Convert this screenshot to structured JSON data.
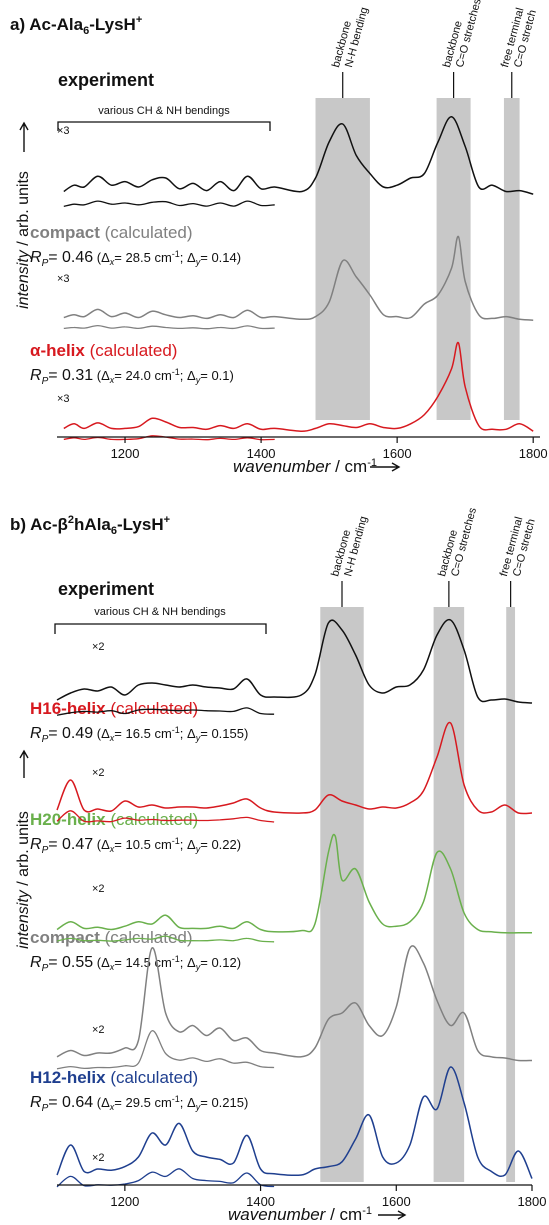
{
  "colors": {
    "black": "#111111",
    "gray": "#808080",
    "red": "#d7191f",
    "green": "#6ab04c",
    "blue": "#1f3f8f",
    "band": "#c8c8c8"
  },
  "chart_data": [
    {
      "type": "line",
      "panel_label": "a)",
      "title_main": "Ac-Ala",
      "title_sub": "6",
      "title_end": "-LysH",
      "title_sup": "+",
      "xlabel": "wavenumber",
      "xunit_main": " / cm",
      "xunit_sup": "-1",
      "ylabel": "intensity",
      "yunit": " / arb. units",
      "xlim": [
        1100,
        1810
      ],
      "xticks": [
        1200,
        1400,
        1600,
        1800
      ],
      "shaded_bands": [
        {
          "label_line1": "backbone",
          "label_line2": "N-H bending",
          "x": [
            1480,
            1560
          ]
        },
        {
          "label_line1": "backbone",
          "label_line2": "C=O stretches",
          "x": [
            1658,
            1708
          ]
        },
        {
          "label_line1": "free terminal",
          "label_line2": "C=O stretch",
          "x": [
            1757,
            1780
          ]
        }
      ],
      "bracket_label": "various CH & NH bendings",
      "series": [
        {
          "name": "experiment",
          "rp": "",
          "dx": "",
          "dy": "",
          "scale_label": "×3",
          "color_key": "black",
          "x": [
            1110,
            1125,
            1140,
            1160,
            1180,
            1200,
            1220,
            1240,
            1260,
            1280,
            1300,
            1320,
            1340,
            1360,
            1380,
            1400,
            1420,
            1460,
            1480,
            1500,
            1520,
            1540,
            1560,
            1580,
            1600,
            1620,
            1640,
            1660,
            1680,
            1700,
            1720,
            1740,
            1760,
            1780,
            1800
          ],
          "y": [
            0.05,
            0.12,
            0.1,
            0.22,
            0.12,
            0.16,
            0.1,
            0.18,
            0.2,
            0.08,
            0.14,
            0.06,
            0.16,
            0.06,
            0.22,
            0.08,
            0.1,
            0.05,
            0.2,
            0.6,
            0.8,
            0.45,
            0.25,
            0.1,
            0.12,
            0.2,
            0.25,
            0.6,
            0.88,
            0.55,
            0.1,
            0.12,
            0.05,
            0.06,
            0.02
          ]
        },
        {
          "name": "compact",
          "rp": "0.46",
          "dx": "28.5",
          "dy": "0.14",
          "scale_label": "×3",
          "color_key": "gray",
          "x": [
            1110,
            1125,
            1140,
            1160,
            1180,
            1200,
            1220,
            1240,
            1260,
            1280,
            1300,
            1320,
            1340,
            1360,
            1380,
            1400,
            1420,
            1460,
            1480,
            1500,
            1520,
            1540,
            1560,
            1580,
            1600,
            1620,
            1640,
            1660,
            1680,
            1690,
            1700,
            1720,
            1740,
            1760,
            1780,
            1800
          ],
          "y": [
            0.05,
            0.08,
            0.06,
            0.14,
            0.06,
            0.1,
            0.05,
            0.12,
            0.08,
            0.05,
            0.07,
            0.04,
            0.08,
            0.05,
            0.13,
            0.05,
            0.06,
            0.03,
            0.06,
            0.22,
            0.68,
            0.5,
            0.3,
            0.08,
            0.06,
            0.05,
            0.2,
            0.3,
            0.6,
            0.95,
            0.45,
            0.08,
            0.04,
            0.06,
            0.03,
            0.02
          ]
        },
        {
          "name": "α-helix",
          "rp": "0.31",
          "dx": "24.0",
          "dy": "0.1",
          "scale_label": "×3",
          "color_key": "red",
          "x": [
            1110,
            1125,
            1140,
            1160,
            1180,
            1200,
            1220,
            1240,
            1260,
            1280,
            1300,
            1320,
            1340,
            1360,
            1380,
            1400,
            1420,
            1460,
            1480,
            1500,
            1520,
            1540,
            1560,
            1580,
            1600,
            1620,
            1640,
            1660,
            1680,
            1690,
            1700,
            1720,
            1740,
            1760,
            1780,
            1800
          ],
          "y": [
            0.05,
            0.1,
            0.05,
            0.11,
            0.05,
            0.05,
            0.07,
            0.16,
            0.12,
            0.06,
            0.06,
            0.04,
            0.08,
            0.05,
            0.1,
            0.04,
            0.05,
            0.02,
            0.05,
            0.1,
            0.08,
            0.06,
            0.1,
            0.06,
            0.05,
            0.1,
            0.2,
            0.4,
            0.7,
            0.98,
            0.5,
            0.08,
            0.04,
            0.04,
            0.1,
            0.02
          ]
        }
      ]
    },
    {
      "type": "line",
      "panel_label": "b)",
      "title_main": "Ac-β",
      "title_sup1": "2",
      "title_mid": "hAla",
      "title_sub": "6",
      "title_end": "-LysH",
      "title_sup": "+",
      "xlabel": "wavenumber",
      "xunit_main": " / cm",
      "xunit_sup": "-1",
      "ylabel": "intensity",
      "yunit": " / arb. units",
      "xlim": [
        1100,
        1800
      ],
      "xticks": [
        1200,
        1400,
        1600,
        1800
      ],
      "shaded_bands": [
        {
          "label_line1": "backbone",
          "label_line2": "N-H bending",
          "x": [
            1488,
            1552
          ]
        },
        {
          "label_line1": "backbone",
          "label_line2": "C=O stretches",
          "x": [
            1655,
            1700
          ]
        },
        {
          "label_line1": "free terminal",
          "label_line2": "C=O stretch",
          "x": [
            1762,
            1775
          ]
        }
      ],
      "bracket_label": "various CH & NH bendings",
      "series": [
        {
          "name": "experiment",
          "rp": "",
          "dx": "",
          "dy": "",
          "scale_label": "×2",
          "color_key": "black",
          "x": [
            1100,
            1120,
            1140,
            1160,
            1180,
            1200,
            1220,
            1240,
            1260,
            1280,
            1300,
            1320,
            1340,
            1360,
            1380,
            1400,
            1420,
            1460,
            1480,
            1500,
            1520,
            1540,
            1560,
            1580,
            1600,
            1620,
            1640,
            1660,
            1680,
            1700,
            1720,
            1740,
            1760,
            1780,
            1800
          ],
          "y": [
            0.05,
            0.12,
            0.16,
            0.14,
            0.18,
            0.1,
            0.2,
            0.22,
            0.2,
            0.18,
            0.2,
            0.18,
            0.17,
            0.16,
            0.26,
            0.1,
            0.08,
            0.1,
            0.3,
            0.82,
            0.75,
            0.5,
            0.2,
            0.12,
            0.18,
            0.2,
            0.35,
            0.7,
            0.85,
            0.55,
            0.08,
            0.05,
            0.06,
            0.03,
            0.02
          ]
        },
        {
          "name": "H16-helix",
          "rp": "0.49",
          "dx": "16.5",
          "dy": "0.155",
          "scale_label": "×2",
          "color_key": "red",
          "x": [
            1100,
            1120,
            1140,
            1160,
            1180,
            1200,
            1220,
            1240,
            1260,
            1280,
            1300,
            1320,
            1340,
            1360,
            1380,
            1400,
            1420,
            1460,
            1480,
            1500,
            1520,
            1540,
            1560,
            1580,
            1600,
            1620,
            1640,
            1660,
            1680,
            1700,
            1720,
            1740,
            1760,
            1780,
            1800
          ],
          "y": [
            0.05,
            0.35,
            0.05,
            0.06,
            0.04,
            0.14,
            0.08,
            0.1,
            0.07,
            0.08,
            0.08,
            0.07,
            0.09,
            0.12,
            0.16,
            0.07,
            0.03,
            0.02,
            0.05,
            0.2,
            0.14,
            0.1,
            0.06,
            0.08,
            0.07,
            0.12,
            0.24,
            0.58,
            0.92,
            0.3,
            0.05,
            0.03,
            0.1,
            0.02,
            0.02
          ]
        },
        {
          "name": "H20-helix",
          "rp": "0.47",
          "dx": "10.5",
          "dy": "0.22",
          "scale_label": "×2",
          "color_key": "green",
          "x": [
            1100,
            1120,
            1140,
            1160,
            1180,
            1200,
            1220,
            1240,
            1260,
            1280,
            1300,
            1320,
            1340,
            1360,
            1380,
            1400,
            1420,
            1460,
            1480,
            1500,
            1510,
            1520,
            1540,
            1560,
            1580,
            1600,
            1620,
            1640,
            1660,
            1680,
            1700,
            1720,
            1740,
            1760,
            1780,
            1800
          ],
          "y": [
            0.05,
            0.12,
            0.06,
            0.07,
            0.05,
            0.08,
            0.12,
            0.1,
            0.18,
            0.07,
            0.06,
            0.06,
            0.08,
            0.06,
            0.12,
            0.05,
            0.03,
            0.04,
            0.1,
            0.75,
            0.9,
            0.5,
            0.6,
            0.3,
            0.1,
            0.08,
            0.12,
            0.3,
            0.75,
            0.6,
            0.2,
            0.05,
            0.03,
            0.02,
            0.02,
            0.02
          ]
        },
        {
          "name": "compact",
          "rp": "0.55",
          "dx": "14.5",
          "dy": "0.12",
          "scale_label": "×2",
          "color_key": "gray",
          "x": [
            1100,
            1120,
            1140,
            1160,
            1180,
            1200,
            1220,
            1240,
            1260,
            1280,
            1300,
            1320,
            1340,
            1360,
            1380,
            1400,
            1420,
            1460,
            1480,
            1500,
            1520,
            1540,
            1560,
            1580,
            1600,
            1620,
            1640,
            1660,
            1680,
            1700,
            1720,
            1740,
            1760,
            1780,
            1800
          ],
          "y": [
            0.05,
            0.1,
            0.06,
            0.08,
            0.08,
            0.12,
            0.18,
            0.92,
            0.4,
            0.25,
            0.3,
            0.22,
            0.28,
            0.18,
            0.2,
            0.1,
            0.08,
            0.05,
            0.12,
            0.35,
            0.4,
            0.48,
            0.3,
            0.22,
            0.45,
            0.92,
            0.8,
            0.5,
            0.3,
            0.4,
            0.1,
            0.05,
            0.04,
            0.02,
            0.02
          ]
        },
        {
          "name": "H12-helix",
          "rp": "0.64",
          "dx": "29.5",
          "dy": "0.215",
          "scale_label": "×2",
          "color_key": "blue",
          "x": [
            1100,
            1120,
            1140,
            1160,
            1180,
            1200,
            1220,
            1240,
            1260,
            1280,
            1300,
            1320,
            1340,
            1360,
            1380,
            1400,
            1420,
            1460,
            1480,
            1500,
            1520,
            1540,
            1560,
            1580,
            1600,
            1620,
            1640,
            1660,
            1680,
            1700,
            1720,
            1740,
            1760,
            1780,
            1800
          ],
          "y": [
            0.05,
            0.3,
            0.08,
            0.1,
            0.09,
            0.12,
            0.2,
            0.4,
            0.3,
            0.48,
            0.25,
            0.2,
            0.18,
            0.15,
            0.38,
            0.1,
            0.06,
            0.05,
            0.1,
            0.12,
            0.16,
            0.35,
            0.55,
            0.2,
            0.15,
            0.3,
            0.7,
            0.6,
            0.95,
            0.65,
            0.2,
            0.08,
            0.05,
            0.25,
            0.02
          ]
        }
      ]
    }
  ]
}
